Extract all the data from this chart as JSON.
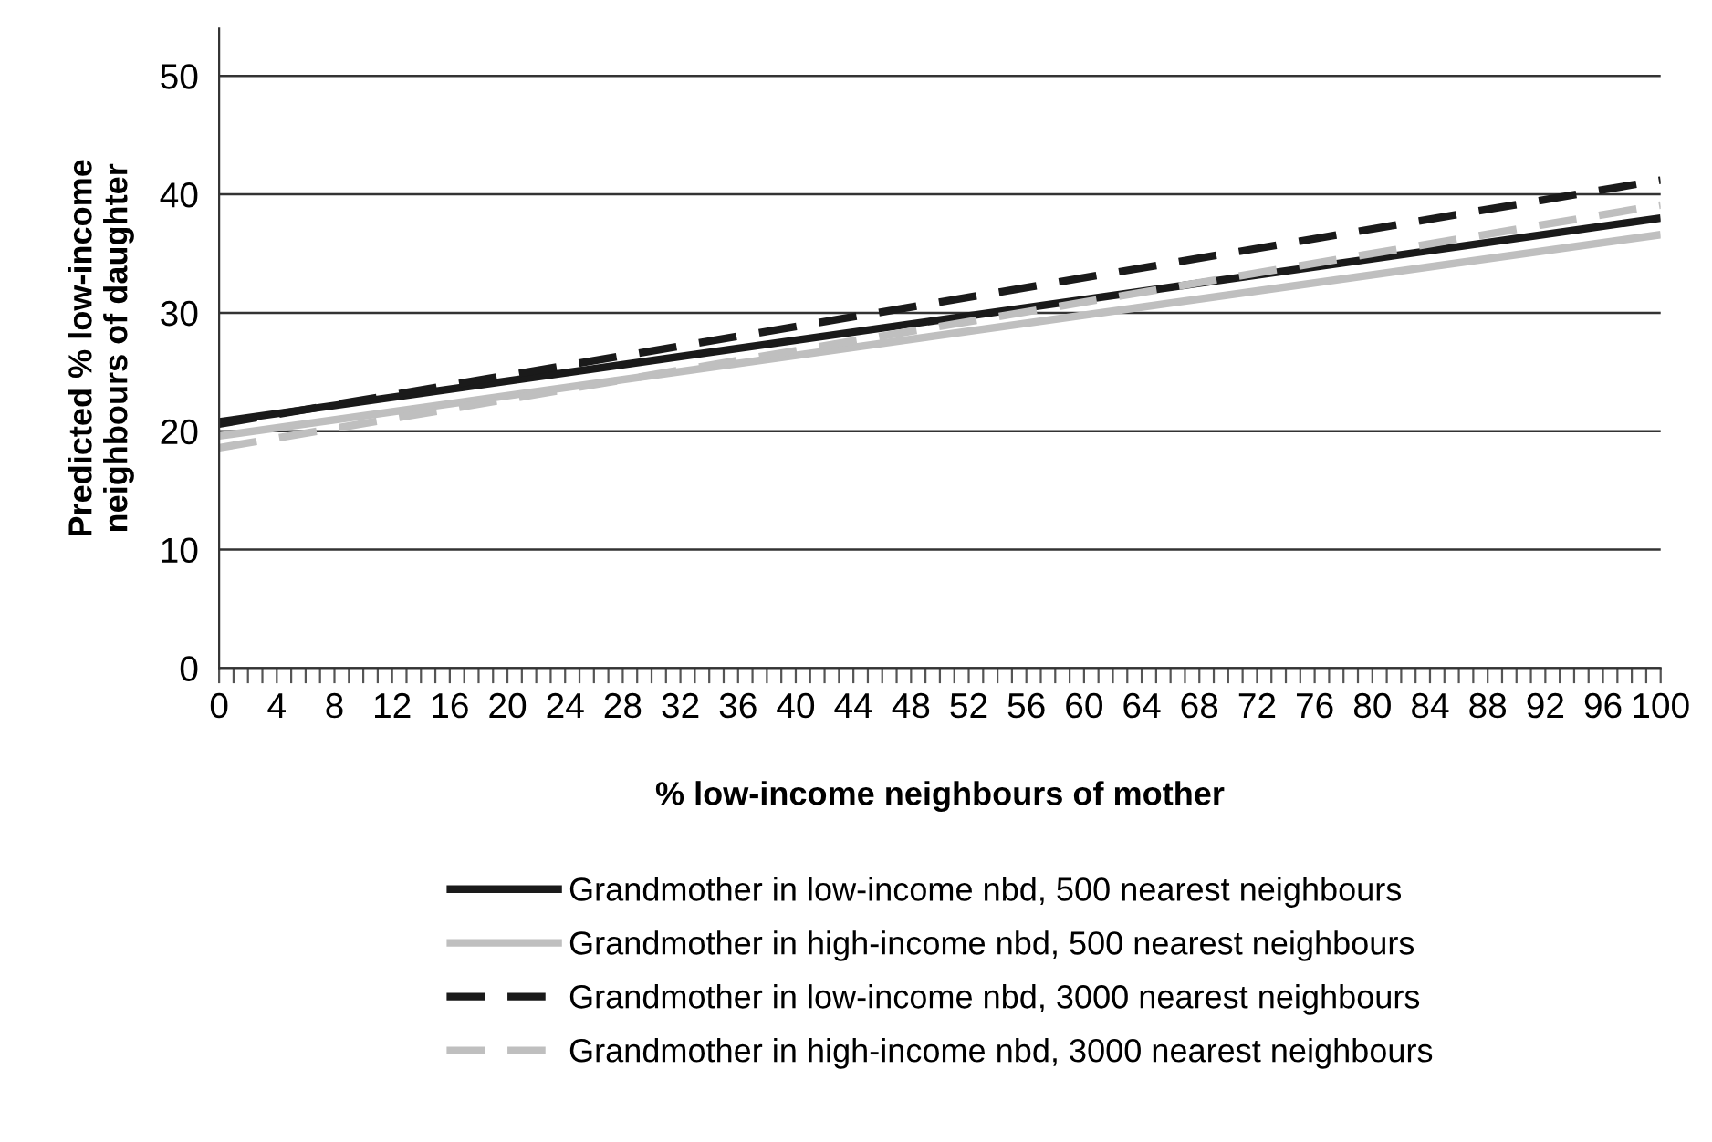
{
  "chart_data": {
    "type": "line",
    "xlabel": "% low-income neighbours of mother",
    "ylabel": "Predicted % low-income\nneighbours of daughter",
    "x": [
      0,
      100
    ],
    "series": [
      {
        "name": "Grandmother in low-income nbd, 500 nearest neighbours",
        "color": "#1a1a1a",
        "values": [
          20.8,
          38.0
        ],
        "line_style": "solid"
      },
      {
        "name": "Grandmother in high-income nbd, 500 nearest neighbours",
        "color": "#bfbfbf",
        "values": [
          19.6,
          36.6
        ],
        "line_style": "solid"
      },
      {
        "name": "Grandmother in low-income nbd, 3000 nearest neighbours",
        "color": "#1a1a1a",
        "values": [
          20.6,
          41.2
        ],
        "line_style": "dashed"
      },
      {
        "name": "Grandmother in high-income nbd, 3000 nearest neighbours",
        "color": "#bfbfbf",
        "values": [
          18.6,
          39.1
        ],
        "line_style": "dashed"
      }
    ],
    "xlim": [
      0,
      100
    ],
    "xticks": [
      0,
      {
        "value": 1,
        "label": null
      },
      {
        "value": 2,
        "label": null
      },
      {
        "value": 3,
        "label": null
      },
      4,
      {
        "value": 5,
        "label": null
      },
      {
        "value": 6,
        "label": null
      },
      {
        "value": 7,
        "label": null
      },
      8,
      {
        "value": 9,
        "label": null
      },
      {
        "value": 10,
        "label": null
      },
      {
        "value": 11,
        "label": null
      },
      12,
      {
        "value": 13,
        "label": null
      },
      {
        "value": 14,
        "label": null
      },
      {
        "value": 15,
        "label": null
      },
      16,
      {
        "value": 17,
        "label": null
      },
      {
        "value": 18,
        "label": null
      },
      {
        "value": 19,
        "label": null
      },
      20,
      {
        "value": 21,
        "label": null
      },
      {
        "value": 22,
        "label": null
      },
      {
        "value": 23,
        "label": null
      },
      24,
      {
        "value": 25,
        "label": null
      },
      {
        "value": 26,
        "label": null
      },
      {
        "value": 27,
        "label": null
      },
      28,
      {
        "value": 29,
        "label": null
      },
      {
        "value": 30,
        "label": null
      },
      {
        "value": 31,
        "label": null
      },
      32,
      {
        "value": 33,
        "label": null
      },
      {
        "value": 34,
        "label": null
      },
      {
        "value": 35,
        "label": null
      },
      36,
      {
        "value": 37,
        "label": null
      },
      {
        "value": 38,
        "label": null
      },
      {
        "value": 39,
        "label": null
      },
      40,
      {
        "value": 41,
        "label": null
      },
      {
        "value": 42,
        "label": null
      },
      {
        "value": 43,
        "label": null
      },
      44,
      {
        "value": 45,
        "label": null
      },
      {
        "value": 46,
        "label": null
      },
      {
        "value": 47,
        "label": null
      },
      48,
      {
        "value": 49,
        "label": null
      },
      {
        "value": 50,
        "label": null
      },
      {
        "value": 51,
        "label": null
      },
      52,
      {
        "value": 53,
        "label": null
      },
      {
        "value": 54,
        "label": null
      },
      {
        "value": 55,
        "label": null
      },
      56,
      {
        "value": 57,
        "label": null
      },
      {
        "value": 58,
        "label": null
      },
      {
        "value": 59,
        "label": null
      },
      60,
      {
        "value": 61,
        "label": null
      },
      {
        "value": 62,
        "label": null
      },
      {
        "value": 63,
        "label": null
      },
      64,
      {
        "value": 65,
        "label": null
      },
      {
        "value": 66,
        "label": null
      },
      {
        "value": 67,
        "label": null
      },
      68,
      {
        "value": 69,
        "label": null
      },
      {
        "value": 70,
        "label": null
      },
      {
        "value": 71,
        "label": null
      },
      72,
      {
        "value": 73,
        "label": null
      },
      {
        "value": 74,
        "label": null
      },
      {
        "value": 75,
        "label": null
      },
      76,
      {
        "value": 77,
        "label": null
      },
      {
        "value": 78,
        "label": null
      },
      {
        "value": 79,
        "label": null
      },
      80,
      {
        "value": 81,
        "label": null
      },
      {
        "value": 82,
        "label": null
      },
      {
        "value": 83,
        "label": null
      },
      84,
      {
        "value": 85,
        "label": null
      },
      {
        "value": 86,
        "label": null
      },
      {
        "value": 87,
        "label": null
      },
      88,
      {
        "value": 89,
        "label": null
      },
      {
        "value": 90,
        "label": null
      },
      {
        "value": 91,
        "label": null
      },
      92,
      {
        "value": 93,
        "label": null
      },
      {
        "value": 94,
        "label": null
      },
      {
        "value": 95,
        "label": null
      },
      96,
      {
        "value": 97,
        "label": null
      },
      {
        "value": 98,
        "label": null
      },
      {
        "value": 99,
        "label": null
      },
      100
    ],
    "ylim": [
      0,
      54
    ],
    "yticks": [
      0,
      10,
      20,
      30,
      40,
      50
    ],
    "grid": "y",
    "legend": "bottom",
    "marker": "none"
  }
}
